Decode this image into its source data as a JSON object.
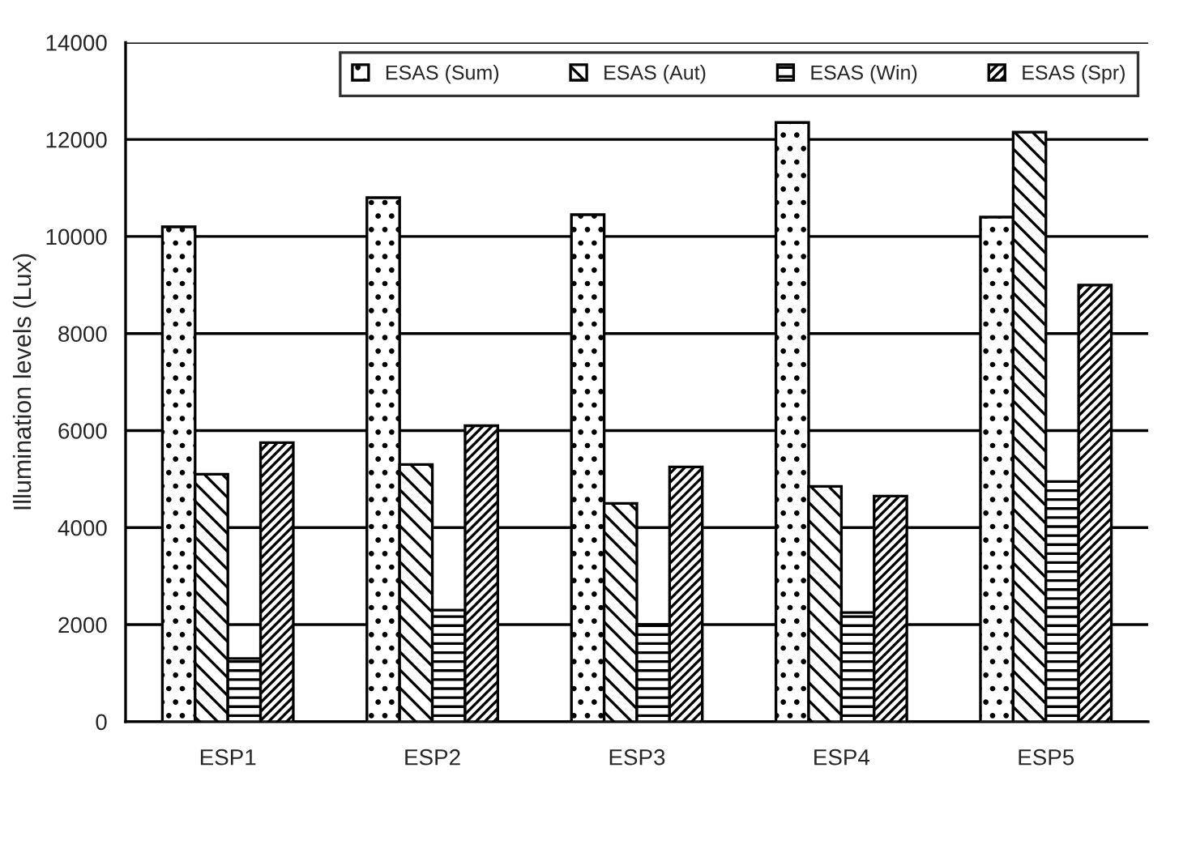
{
  "chart_data": {
    "type": "bar",
    "ylabel": "Illumination levels (Lux)",
    "categories": [
      "ESP1",
      "ESP2",
      "ESP3",
      "ESP4",
      "ESP5"
    ],
    "series": [
      {
        "name": "ESAS (Sum)",
        "color": "#000000",
        "values": [
          10200,
          10800,
          10450,
          12350,
          10400
        ]
      },
      {
        "name": "ESAS (Aut)",
        "color": "#000000",
        "values": [
          5100,
          5300,
          4500,
          4850,
          12150
        ]
      },
      {
        "name": "ESAS (Win)",
        "color": "#000000",
        "values": [
          1300,
          2300,
          2000,
          2250,
          4950
        ]
      },
      {
        "name": "ESAS (Spr)",
        "color": "#000000",
        "values": [
          5750,
          6100,
          5250,
          4650,
          9000
        ]
      }
    ],
    "ylim": [
      0,
      14000
    ],
    "yticks": [
      0,
      2000,
      4000,
      6000,
      8000,
      10000,
      12000,
      14000
    ],
    "grid": "y",
    "legend": "top right"
  }
}
